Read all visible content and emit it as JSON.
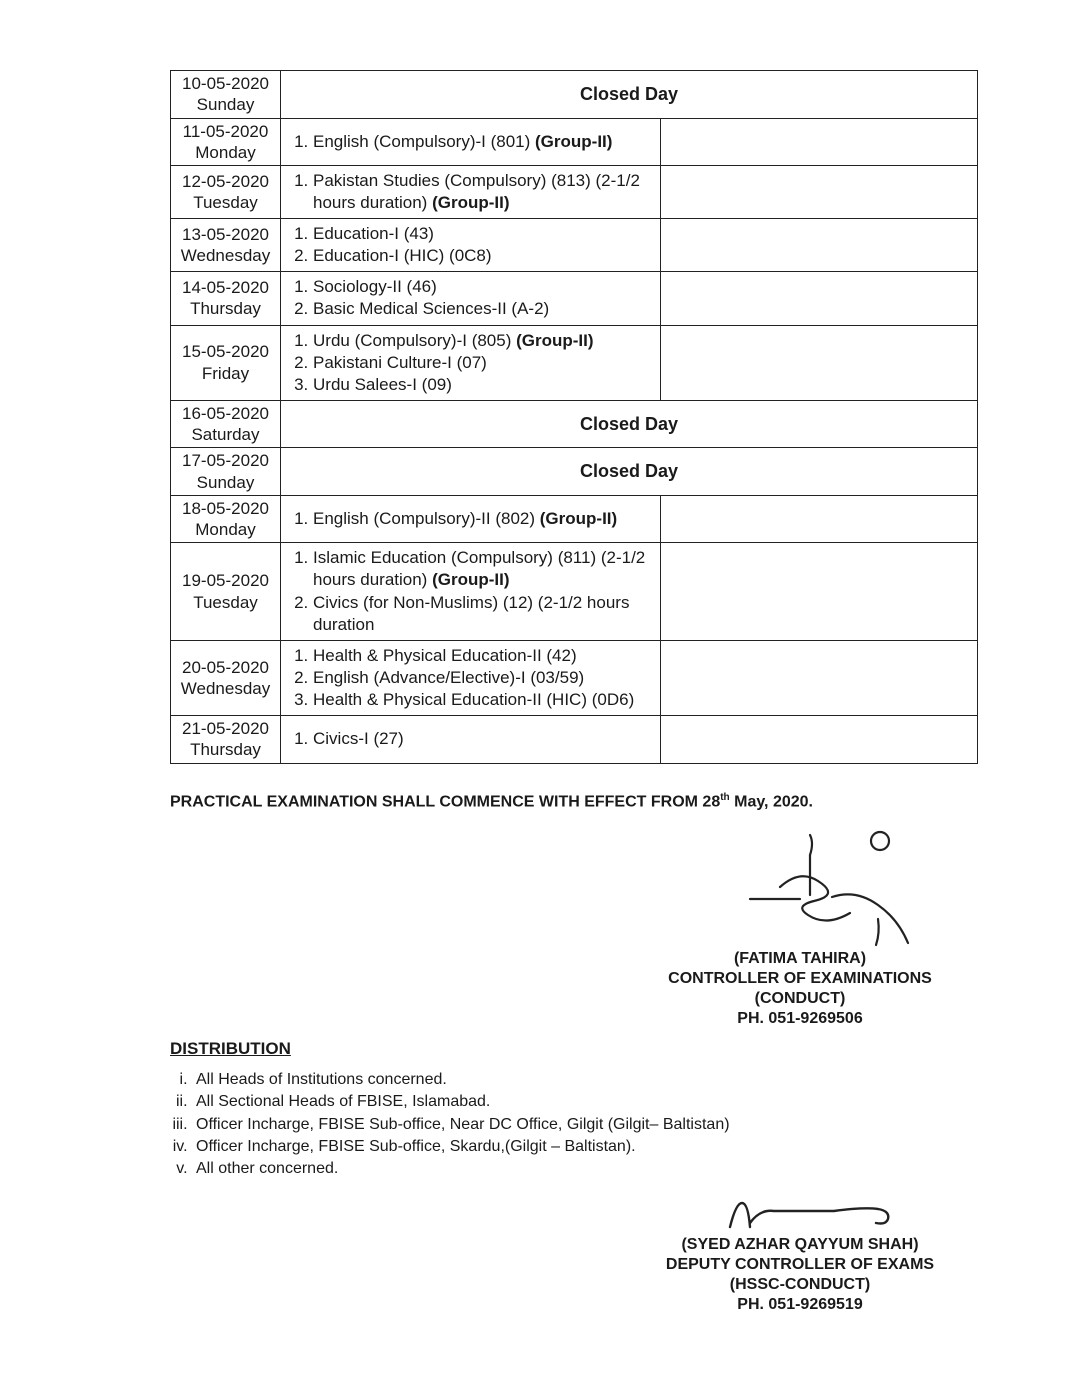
{
  "schedule": {
    "closed_label": "Closed Day",
    "rows": [
      {
        "date": "10-05-2020",
        "day": "Sunday",
        "closed": true
      },
      {
        "date": "11-05-2020",
        "day": "Monday",
        "subjects": [
          "English (Compulsory)-I (801) <b>(Group-II)</b>"
        ]
      },
      {
        "date": "12-05-2020",
        "day": "Tuesday",
        "subjects": [
          "Pakistan Studies (Compulsory) (813) (2-1/2 hours duration) <b>(Group-II)</b>"
        ]
      },
      {
        "date": "13-05-2020",
        "day": "Wednesday",
        "subjects": [
          "Education-I (43)",
          "Education-I (HIC) (0C8)"
        ]
      },
      {
        "date": "14-05-2020",
        "day": "Thursday",
        "subjects": [
          "Sociology-II (46)",
          "Basic Medical Sciences-II (A-2)"
        ]
      },
      {
        "date": "15-05-2020",
        "day": "Friday",
        "subjects": [
          "Urdu (Compulsory)-I (805) <b>(Group-II)</b>",
          "Pakistani Culture-I (07)",
          "Urdu Salees-I (09)"
        ]
      },
      {
        "date": "16-05-2020",
        "day": "Saturday",
        "closed": true
      },
      {
        "date": "17-05-2020",
        "day": "Sunday",
        "closed": true
      },
      {
        "date": "18-05-2020",
        "day": "Monday",
        "subjects": [
          "English (Compulsory)-II (802) <b>(Group-II)</b>"
        ]
      },
      {
        "date": "19-05-2020",
        "day": "Tuesday",
        "subjects": [
          "Islamic Education (Compulsory) (811) (2-1/2 hours duration) <b>(Group-II)</b>",
          "Civics (for Non-Muslims) (12) (2-1/2 hours duration"
        ]
      },
      {
        "date": "20-05-2020",
        "day": "Wednesday",
        "subjects": [
          "Health & Physical Education-II (42)",
          "English (Advance/Elective)-I (03/59)",
          "Health & Physical Education-II (HIC) (0D6)"
        ]
      },
      {
        "date": "21-05-2020",
        "day": "Thursday",
        "subjects": [
          "Civics-I (27)"
        ]
      }
    ]
  },
  "notice": "PRACTICAL EXAMINATION SHALL COMMENCE WITH EFFECT FROM  28<sup>th</sup> May, 2020.",
  "sig1": {
    "name": "(FATIMA TAHIRA)",
    "title": "CONTROLLER OF EXAMINATIONS",
    "dept": "(CONDUCT)",
    "phone": "PH. 051-9269506"
  },
  "distribution": {
    "heading": "DISTRIBUTION",
    "items": [
      "All Heads of Institutions concerned.",
      "All Sectional Heads of FBISE, Islamabad.",
      "Officer Incharge, FBISE Sub-office, Near DC Office, Gilgit (Gilgit– Baltistan)",
      "Officer Incharge, FBISE Sub-office, Skardu,(Gilgit – Baltistan).",
      "All other concerned."
    ]
  },
  "sig2": {
    "name": "(SYED AZHAR QAYYUM SHAH)",
    "title": "DEPUTY CONTROLLER OF EXAMS",
    "dept": "(HSSC-CONDUCT)",
    "phone": "PH. 051-9269519"
  }
}
